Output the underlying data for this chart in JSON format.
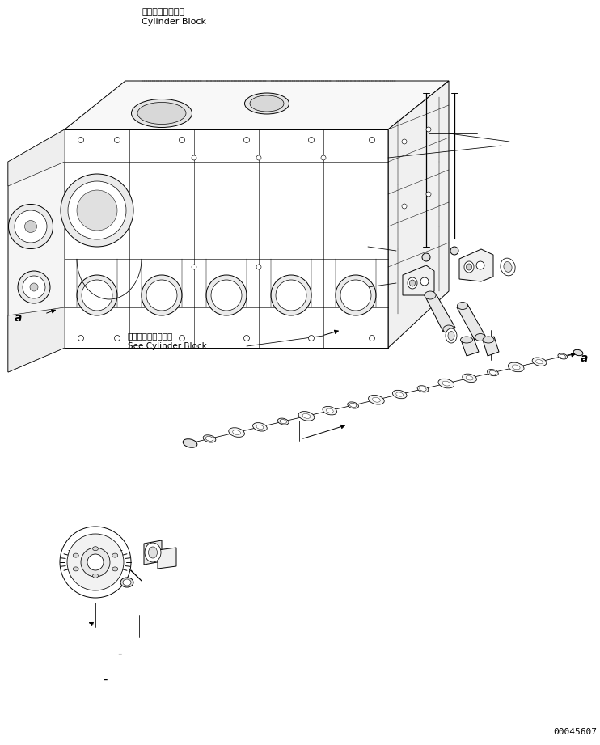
{
  "bg_color": "#ffffff",
  "line_color": "#000000",
  "fig_width": 7.42,
  "fig_height": 9.21,
  "dpi": 100,
  "part_number": "00045607",
  "label_cylinder_block_jp": "シリンダブロック",
  "label_cylinder_block_en": "Cylinder Block",
  "label_see_cylinder_block_jp": "シリンダブロッ参照",
  "label_see_cylinder_block_en": "See Cylinder Block",
  "label_a": "a",
  "note1": "-",
  "note2": "-"
}
